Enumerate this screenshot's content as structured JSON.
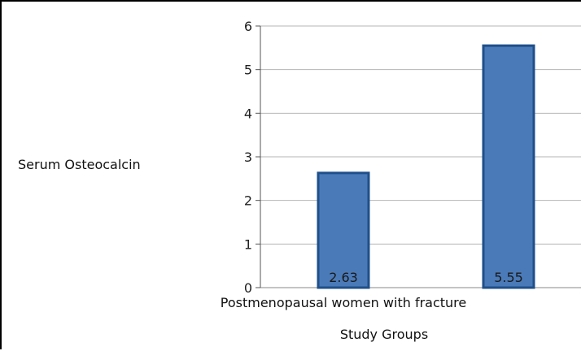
{
  "chart_data": {
    "type": "bar",
    "title": "",
    "xlabel": "Study Groups",
    "ylabel": "Serum Osteocalcin",
    "categories": [
      "Postmenopausal women with fracture",
      ""
    ],
    "values": [
      2.63,
      5.55
    ],
    "data_labels": [
      "2.63",
      "5.55"
    ],
    "y_ticks": [
      "0",
      "1",
      "2",
      "3",
      "4",
      "5",
      "6"
    ],
    "ylim": [
      0,
      6
    ],
    "grid": true,
    "legend": "none",
    "bar_color": "#4a7ab8",
    "bar_border_color": "#1f4f8a"
  }
}
